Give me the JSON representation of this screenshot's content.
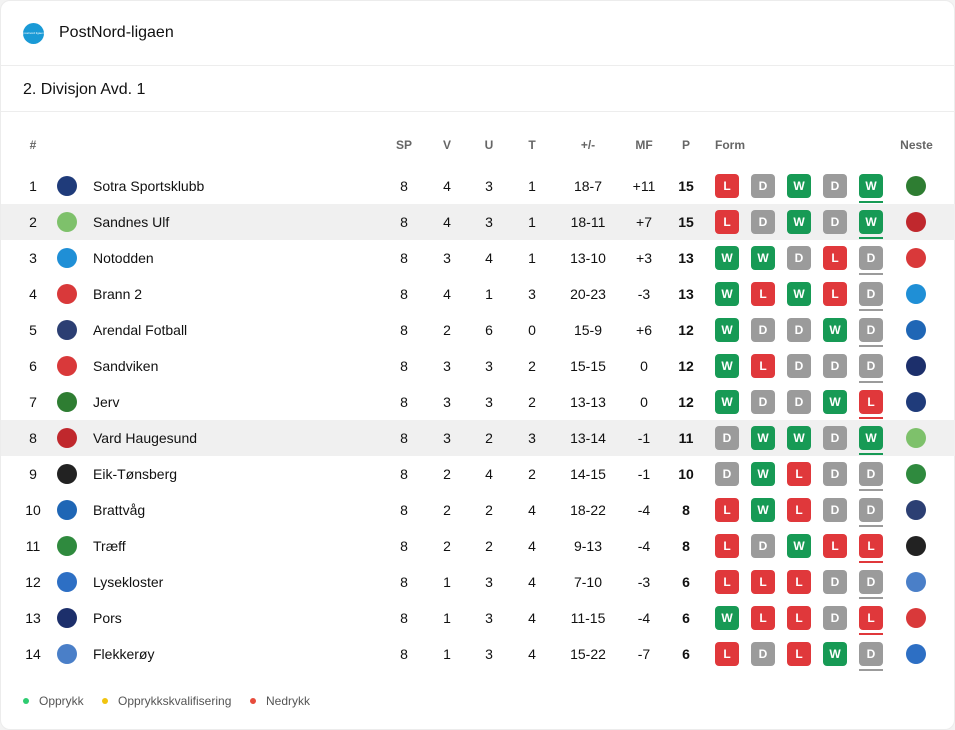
{
  "league": {
    "name": "PostNord-ligaen",
    "logo_text": "postnord ligaen",
    "logo_color": "#1a9ad6"
  },
  "division": {
    "title": "2. Divisjon Avd. 1"
  },
  "columns": {
    "pos": "#",
    "sp": "SP",
    "v": "V",
    "u": "U",
    "t": "T",
    "gd": "+/-",
    "mf": "MF",
    "p": "P",
    "form": "Form",
    "next": "Neste"
  },
  "colors": {
    "win": "#179a55",
    "loss": "#e0383b",
    "draw": "#9b9b9b",
    "highlight_row": "#f0f0f0"
  },
  "rows": [
    {
      "pos": "1",
      "team": "Sotra Sportsklubb",
      "logo": "sotra-crest",
      "logo_color": "#1f3b7a",
      "sp": "8",
      "v": "4",
      "u": "3",
      "t": "1",
      "gd": "18-7",
      "mf": "+11",
      "p": "15",
      "form": [
        "L",
        "D",
        "W",
        "D",
        "W"
      ],
      "next": "jerv-crest",
      "next_color": "#2e7d32",
      "highlight": false
    },
    {
      "pos": "2",
      "team": "Sandnes Ulf",
      "logo": "sandnes-ulf-crest",
      "logo_color": "#7ec16b",
      "sp": "8",
      "v": "4",
      "u": "3",
      "t": "1",
      "gd": "18-11",
      "mf": "+7",
      "p": "15",
      "form": [
        "L",
        "D",
        "W",
        "D",
        "W"
      ],
      "next": "vard-crest",
      "next_color": "#c0282d",
      "highlight": true
    },
    {
      "pos": "3",
      "team": "Notodden",
      "logo": "notodden-crest",
      "logo_color": "#1f8fd6",
      "sp": "8",
      "v": "3",
      "u": "4",
      "t": "1",
      "gd": "13-10",
      "mf": "+3",
      "p": "13",
      "form": [
        "W",
        "W",
        "D",
        "L",
        "D"
      ],
      "next": "brann-crest",
      "next_color": "#d9393a",
      "highlight": false
    },
    {
      "pos": "4",
      "team": "Brann 2",
      "logo": "brann-crest",
      "logo_color": "#d9393a",
      "sp": "8",
      "v": "4",
      "u": "1",
      "t": "3",
      "gd": "20-23",
      "mf": "-3",
      "p": "13",
      "form": [
        "W",
        "L",
        "W",
        "L",
        "D"
      ],
      "next": "notodden-crest",
      "next_color": "#1f8fd6",
      "highlight": false
    },
    {
      "pos": "5",
      "team": "Arendal Fotball",
      "logo": "arendal-crest",
      "logo_color": "#2c3f73",
      "sp": "8",
      "v": "2",
      "u": "6",
      "t": "0",
      "gd": "15-9",
      "mf": "+6",
      "p": "12",
      "form": [
        "W",
        "D",
        "D",
        "W",
        "D"
      ],
      "next": "brattvag-crest",
      "next_color": "#1f66b5",
      "highlight": false
    },
    {
      "pos": "6",
      "team": "Sandviken",
      "logo": "sandviken-crest",
      "logo_color": "#d9393a",
      "sp": "8",
      "v": "3",
      "u": "3",
      "t": "2",
      "gd": "15-15",
      "mf": "0",
      "p": "12",
      "form": [
        "W",
        "L",
        "D",
        "D",
        "D"
      ],
      "next": "pors-crest",
      "next_color": "#1c2f6b",
      "highlight": false
    },
    {
      "pos": "7",
      "team": "Jerv",
      "logo": "jerv-crest",
      "logo_color": "#2e7d32",
      "sp": "8",
      "v": "3",
      "u": "3",
      "t": "2",
      "gd": "13-13",
      "mf": "0",
      "p": "12",
      "form": [
        "W",
        "D",
        "D",
        "W",
        "L"
      ],
      "next": "sotra-crest",
      "next_color": "#1f3b7a",
      "highlight": false
    },
    {
      "pos": "8",
      "team": "Vard Haugesund",
      "logo": "vard-crest",
      "logo_color": "#c0282d",
      "sp": "8",
      "v": "3",
      "u": "2",
      "t": "3",
      "gd": "13-14",
      "mf": "-1",
      "p": "11",
      "form": [
        "D",
        "W",
        "W",
        "D",
        "W"
      ],
      "next": "sandnes-ulf-crest",
      "next_color": "#7ec16b",
      "highlight": true
    },
    {
      "pos": "9",
      "team": "Eik-Tønsberg",
      "logo": "eik-crest",
      "logo_color": "#222222",
      "sp": "8",
      "v": "2",
      "u": "4",
      "t": "2",
      "gd": "14-15",
      "mf": "-1",
      "p": "10",
      "form": [
        "D",
        "W",
        "L",
        "D",
        "D"
      ],
      "next": "traeff-crest",
      "next_color": "#2f8a3e",
      "highlight": false
    },
    {
      "pos": "10",
      "team": "Brattvåg",
      "logo": "brattvag-crest",
      "logo_color": "#1f66b5",
      "sp": "8",
      "v": "2",
      "u": "2",
      "t": "4",
      "gd": "18-22",
      "mf": "-4",
      "p": "8",
      "form": [
        "L",
        "W",
        "L",
        "D",
        "D"
      ],
      "next": "arendal-crest",
      "next_color": "#2c3f73",
      "highlight": false
    },
    {
      "pos": "11",
      "team": "Træff",
      "logo": "traeff-crest",
      "logo_color": "#2f8a3e",
      "sp": "8",
      "v": "2",
      "u": "2",
      "t": "4",
      "gd": "9-13",
      "mf": "-4",
      "p": "8",
      "form": [
        "L",
        "D",
        "W",
        "L",
        "L"
      ],
      "next": "eik-crest",
      "next_color": "#222222",
      "highlight": false
    },
    {
      "pos": "12",
      "team": "Lysekloster",
      "logo": "lysekloster-crest",
      "logo_color": "#2d6fc4",
      "sp": "8",
      "v": "1",
      "u": "3",
      "t": "4",
      "gd": "7-10",
      "mf": "-3",
      "p": "6",
      "form": [
        "L",
        "L",
        "L",
        "D",
        "D"
      ],
      "next": "flekkeroy-crest",
      "next_color": "#4a7fc8",
      "highlight": false
    },
    {
      "pos": "13",
      "team": "Pors",
      "logo": "pors-crest",
      "logo_color": "#1c2f6b",
      "sp": "8",
      "v": "1",
      "u": "3",
      "t": "4",
      "gd": "11-15",
      "mf": "-4",
      "p": "6",
      "form": [
        "W",
        "L",
        "L",
        "D",
        "L"
      ],
      "next": "sandviken-crest",
      "next_color": "#d9393a",
      "highlight": false
    },
    {
      "pos": "14",
      "team": "Flekkerøy",
      "logo": "flekkeroy-crest",
      "logo_color": "#4a7fc8",
      "sp": "8",
      "v": "1",
      "u": "3",
      "t": "4",
      "gd": "15-22",
      "mf": "-7",
      "p": "6",
      "form": [
        "L",
        "D",
        "L",
        "W",
        "D"
      ],
      "next": "lysekloster-crest",
      "next_color": "#2d6fc4",
      "highlight": false
    }
  ],
  "legend": [
    {
      "label": "Opprykk",
      "color": "#2ecc71"
    },
    {
      "label": "Opprykkskvalifisering",
      "color": "#f1c40f"
    },
    {
      "label": "Nedrykk",
      "color": "#e74c3c"
    }
  ]
}
